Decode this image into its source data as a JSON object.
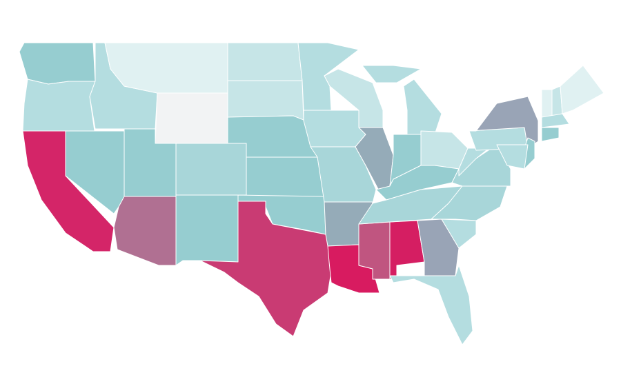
{
  "map": {
    "fills": [
      "#e0f1f2",
      "#c6e5e7",
      "#b4dde0",
      "#96cdd0",
      "#a8d6d9",
      "#f2f3f4",
      "#95abb8",
      "#99a4b6",
      "#b07092",
      "#c93b73",
      "#d42568",
      "#d81b60",
      "#d51e62",
      "#c05580"
    ]
  }
}
